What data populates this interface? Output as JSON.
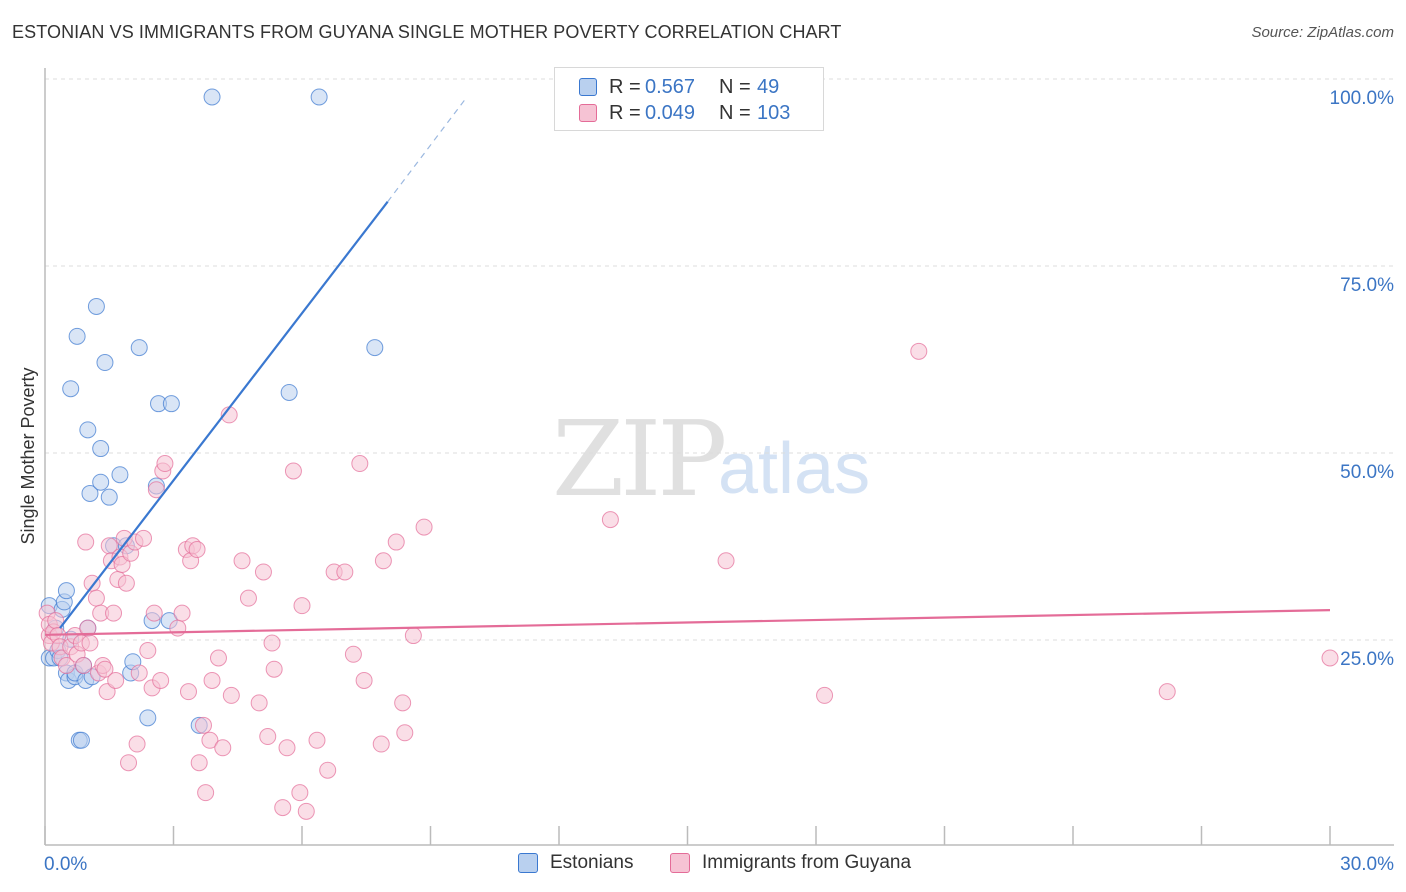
{
  "title": "ESTONIAN VS IMMIGRANTS FROM GUYANA SINGLE MOTHER POVERTY CORRELATION CHART",
  "source": "Source: ZipAtlas.com",
  "watermark": {
    "zip": "ZIP",
    "atlas": "atlas"
  },
  "legend": {
    "r_label": "R =",
    "n_label": "N =",
    "series1": {
      "r": "0.567",
      "n": "49"
    },
    "series2": {
      "r": "0.049",
      "n": "103"
    }
  },
  "colors": {
    "blue": "#3a78d0",
    "blue_fill": "#b9d0ef",
    "pink": "#e46c98",
    "pink_fill": "#f6c3d4",
    "tick_text": "#3b75c4",
    "grid": "#dddddd"
  },
  "chart_data": {
    "type": "scatter",
    "title": "ESTONIAN VS IMMIGRANTS FROM GUYANA SINGLE MOTHER POVERTY CORRELATION CHART",
    "xlabel": "",
    "ylabel": "Single Mother Poverty",
    "xlim": [
      0,
      30
    ],
    "ylim": [
      0,
      102
    ],
    "x_tick_labels": {
      "left": "0.0%",
      "right": "30.0%"
    },
    "y_ticks": [
      {
        "value": 25,
        "label": "25.0%"
      },
      {
        "value": 50,
        "label": "50.0%"
      },
      {
        "value": 75,
        "label": "75.0%"
      },
      {
        "value": 100,
        "label": "100.0%"
      }
    ],
    "series": [
      {
        "name": "Estonians",
        "color": "#3a78d0",
        "points": [
          [
            0.1,
            32
          ],
          [
            0.1,
            25
          ],
          [
            0.2,
            25
          ],
          [
            0.25,
            29
          ],
          [
            0.3,
            26
          ],
          [
            0.35,
            25
          ],
          [
            0.4,
            31.5
          ],
          [
            0.45,
            32.5
          ],
          [
            0.5,
            34
          ],
          [
            0.5,
            23
          ],
          [
            0.55,
            22
          ],
          [
            0.6,
            61
          ],
          [
            0.6,
            27.5
          ],
          [
            0.7,
            22.5
          ],
          [
            0.7,
            23
          ],
          [
            0.75,
            68
          ],
          [
            0.8,
            14
          ],
          [
            0.85,
            14
          ],
          [
            0.9,
            24
          ],
          [
            0.95,
            22
          ],
          [
            1.0,
            29
          ],
          [
            1.0,
            55.5
          ],
          [
            1.05,
            47
          ],
          [
            1.1,
            22.5
          ],
          [
            1.2,
            72
          ],
          [
            1.3,
            48.5
          ],
          [
            1.3,
            53
          ],
          [
            1.4,
            64.5
          ],
          [
            1.5,
            46.5
          ],
          [
            1.6,
            40
          ],
          [
            1.75,
            49.5
          ],
          [
            1.9,
            40
          ],
          [
            2.0,
            23
          ],
          [
            2.05,
            24.5
          ],
          [
            2.2,
            66.5
          ],
          [
            2.4,
            17
          ],
          [
            2.5,
            30
          ],
          [
            2.6,
            48
          ],
          [
            2.65,
            59
          ],
          [
            2.9,
            30
          ],
          [
            2.95,
            59
          ],
          [
            3.6,
            16
          ],
          [
            3.9,
            100
          ],
          [
            5.7,
            60.5
          ],
          [
            6.4,
            100
          ],
          [
            7.7,
            66.5
          ]
        ]
      },
      {
        "name": "Immigrants from Guyana",
        "color": "#e46c98",
        "points": [
          [
            0.05,
            31
          ],
          [
            0.1,
            28
          ],
          [
            0.1,
            29.5
          ],
          [
            0.15,
            27
          ],
          [
            0.2,
            28.5
          ],
          [
            0.25,
            30
          ],
          [
            0.3,
            28
          ],
          [
            0.35,
            26.5
          ],
          [
            0.4,
            25
          ],
          [
            0.5,
            24
          ],
          [
            0.6,
            26.5
          ],
          [
            0.7,
            28
          ],
          [
            0.75,
            25.5
          ],
          [
            0.85,
            27
          ],
          [
            0.9,
            24
          ],
          [
            0.95,
            40.5
          ],
          [
            1.0,
            29
          ],
          [
            1.05,
            27
          ],
          [
            1.1,
            35
          ],
          [
            1.2,
            33
          ],
          [
            1.25,
            23
          ],
          [
            1.3,
            31
          ],
          [
            1.35,
            24
          ],
          [
            1.4,
            23.5
          ],
          [
            1.45,
            20.5
          ],
          [
            1.5,
            40
          ],
          [
            1.55,
            38
          ],
          [
            1.6,
            31
          ],
          [
            1.65,
            22
          ],
          [
            1.7,
            35.5
          ],
          [
            1.75,
            38.5
          ],
          [
            1.8,
            37.5
          ],
          [
            1.85,
            41
          ],
          [
            1.9,
            35
          ],
          [
            1.95,
            11
          ],
          [
            2.0,
            39
          ],
          [
            2.1,
            40.5
          ],
          [
            2.15,
            13.5
          ],
          [
            2.2,
            23
          ],
          [
            2.3,
            41
          ],
          [
            2.4,
            26
          ],
          [
            2.5,
            21
          ],
          [
            2.55,
            31
          ],
          [
            2.6,
            47.5
          ],
          [
            2.7,
            22
          ],
          [
            2.75,
            50
          ],
          [
            2.8,
            51
          ],
          [
            3.1,
            29
          ],
          [
            3.2,
            31
          ],
          [
            3.3,
            39.5
          ],
          [
            3.35,
            20.5
          ],
          [
            3.4,
            38
          ],
          [
            3.45,
            40
          ],
          [
            3.55,
            39.5
          ],
          [
            3.6,
            11
          ],
          [
            3.7,
            16
          ],
          [
            3.75,
            7
          ],
          [
            3.85,
            14
          ],
          [
            3.9,
            22
          ],
          [
            4.05,
            25
          ],
          [
            4.15,
            13
          ],
          [
            4.3,
            57.5
          ],
          [
            4.35,
            20
          ],
          [
            4.6,
            38
          ],
          [
            4.75,
            33
          ],
          [
            5.0,
            19
          ],
          [
            5.1,
            36.5
          ],
          [
            5.2,
            14.5
          ],
          [
            5.3,
            27
          ],
          [
            5.35,
            23.5
          ],
          [
            5.55,
            5
          ],
          [
            5.65,
            13
          ],
          [
            5.8,
            50
          ],
          [
            5.95,
            7
          ],
          [
            6.0,
            32
          ],
          [
            6.1,
            4.5
          ],
          [
            6.35,
            14
          ],
          [
            6.6,
            10
          ],
          [
            6.75,
            36.5
          ],
          [
            7.0,
            36.5
          ],
          [
            7.2,
            25.5
          ],
          [
            7.35,
            51
          ],
          [
            7.45,
            22
          ],
          [
            7.85,
            13.5
          ],
          [
            7.9,
            38
          ],
          [
            8.2,
            40.5
          ],
          [
            8.35,
            19
          ],
          [
            8.4,
            15
          ],
          [
            8.6,
            28
          ],
          [
            8.85,
            42.5
          ],
          [
            13.2,
            43.5
          ],
          [
            15.9,
            38
          ],
          [
            18.2,
            20
          ],
          [
            20.4,
            66
          ],
          [
            26.2,
            20.5
          ],
          [
            30.0,
            25
          ]
        ]
      }
    ],
    "trend_lines": [
      {
        "series": "Estonians",
        "x_start": 0.35,
        "y_start": 29,
        "x_end": 8.0,
        "y_end": 86,
        "dashed_to_x": 9.85,
        "dashed_to_y": 100
      },
      {
        "series": "Immigrants from Guyana",
        "x_start": 0.0,
        "y_start": 28.1,
        "x_end": 30.0,
        "y_end": 31.4
      }
    ]
  }
}
